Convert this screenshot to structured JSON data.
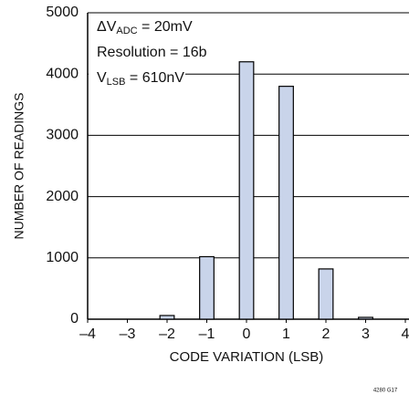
{
  "chart_data": {
    "type": "bar",
    "x_label": "CODE VARIATION (LSB)",
    "y_label": "NUMBER OF READINGS",
    "x": [
      -2,
      -1,
      0,
      1,
      2,
      3
    ],
    "values": [
      60,
      1020,
      4200,
      3800,
      820,
      30
    ],
    "color": "#c9d4ea",
    "xlim": [
      -4,
      4
    ],
    "ylim": [
      0,
      5000
    ],
    "xticks": [
      {
        "value": -4,
        "label": "–4"
      },
      {
        "value": -3,
        "label": "–3"
      },
      {
        "value": -2,
        "label": "–2"
      },
      {
        "value": -1,
        "label": "–1"
      },
      0,
      1,
      2,
      3,
      4
    ],
    "yticks": [
      0,
      1000,
      2000,
      3000,
      4000,
      5000
    ],
    "grid": true,
    "annotations": [
      {
        "main": "ΔV",
        "sub": "ADC",
        "rest": " = 20mV"
      },
      {
        "main": "Resolution = 16b"
      },
      {
        "main": "V",
        "sub": "LSB",
        "rest": " = 610nV"
      }
    ],
    "figure_id": "4280 G17"
  }
}
